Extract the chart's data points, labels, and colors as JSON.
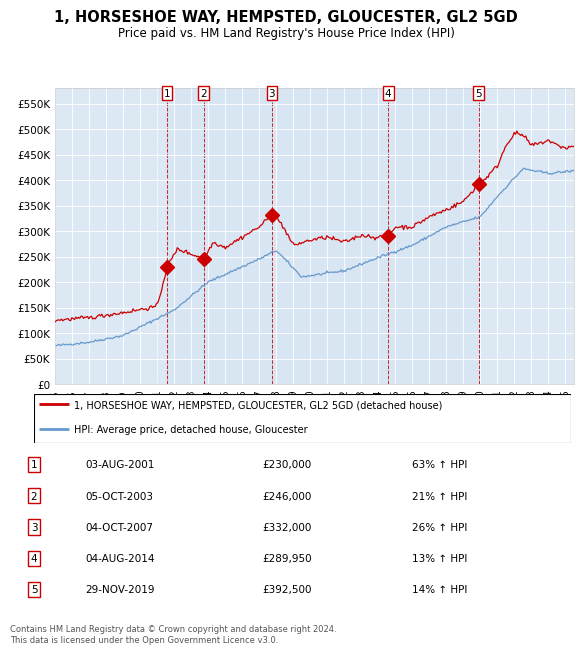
{
  "title": "1, HORSESHOE WAY, HEMPSTED, GLOUCESTER, GL2 5GD",
  "subtitle": "Price paid vs. HM Land Registry's House Price Index (HPI)",
  "title_fontsize": 10.5,
  "subtitle_fontsize": 8.5,
  "background_color": "#ffffff",
  "plot_bg_color": "#dce9f5",
  "ylim": [
    0,
    580000
  ],
  "yticks": [
    0,
    50000,
    100000,
    150000,
    200000,
    250000,
    300000,
    350000,
    400000,
    450000,
    500000,
    550000
  ],
  "xlim_start": 1995.0,
  "xlim_end": 2025.5,
  "xticks": [
    1995,
    1996,
    1997,
    1998,
    1999,
    2000,
    2001,
    2002,
    2003,
    2004,
    2005,
    2006,
    2007,
    2008,
    2009,
    2010,
    2011,
    2012,
    2013,
    2014,
    2015,
    2016,
    2017,
    2018,
    2019,
    2020,
    2021,
    2022,
    2023,
    2024,
    2025
  ],
  "red_line_color": "#cc0000",
  "blue_line_color": "#6699cc",
  "sale_marker_color": "#cc0000",
  "sale_marker_size": 7,
  "dashed_vline_color": "#cc0000",
  "dashed_gray_vline_color": "#999999",
  "legend_label_red": "1, HORSESHOE WAY, HEMPSTED, GLOUCESTER, GL2 5GD (detached house)",
  "legend_label_blue": "HPI: Average price, detached house, Gloucester",
  "footer_text": "Contains HM Land Registry data © Crown copyright and database right 2024.\nThis data is licensed under the Open Government Licence v3.0.",
  "sales": [
    {
      "num": 1,
      "date_x": 2001.58,
      "price": 230000,
      "label": "03-AUG-2001",
      "pct": "63% ↑ HPI"
    },
    {
      "num": 2,
      "date_x": 2003.75,
      "price": 246000,
      "label": "05-OCT-2003",
      "pct": "21% ↑ HPI"
    },
    {
      "num": 3,
      "date_x": 2007.75,
      "price": 332000,
      "label": "04-OCT-2007",
      "pct": "26% ↑ HPI"
    },
    {
      "num": 4,
      "date_x": 2014.58,
      "price": 289950,
      "label": "04-AUG-2014",
      "pct": "13% ↑ HPI"
    },
    {
      "num": 5,
      "date_x": 2019.91,
      "price": 392500,
      "label": "29-NOV-2019",
      "pct": "14% ↑ HPI"
    }
  ],
  "table_rows": [
    {
      "num": 1,
      "date": "03-AUG-2001",
      "price": "£230,000",
      "pct": "63% ↑ HPI"
    },
    {
      "num": 2,
      "date": "05-OCT-2003",
      "price": "£246,000",
      "pct": "21% ↑ HPI"
    },
    {
      "num": 3,
      "date": "04-OCT-2007",
      "price": "£332,000",
      "pct": "26% ↑ HPI"
    },
    {
      "num": 4,
      "date": "04-AUG-2014",
      "price": "£289,950",
      "pct": "13% ↑ HPI"
    },
    {
      "num": 5,
      "date": "29-NOV-2019",
      "price": "£392,500",
      "pct": "14% ↑ HPI"
    }
  ]
}
